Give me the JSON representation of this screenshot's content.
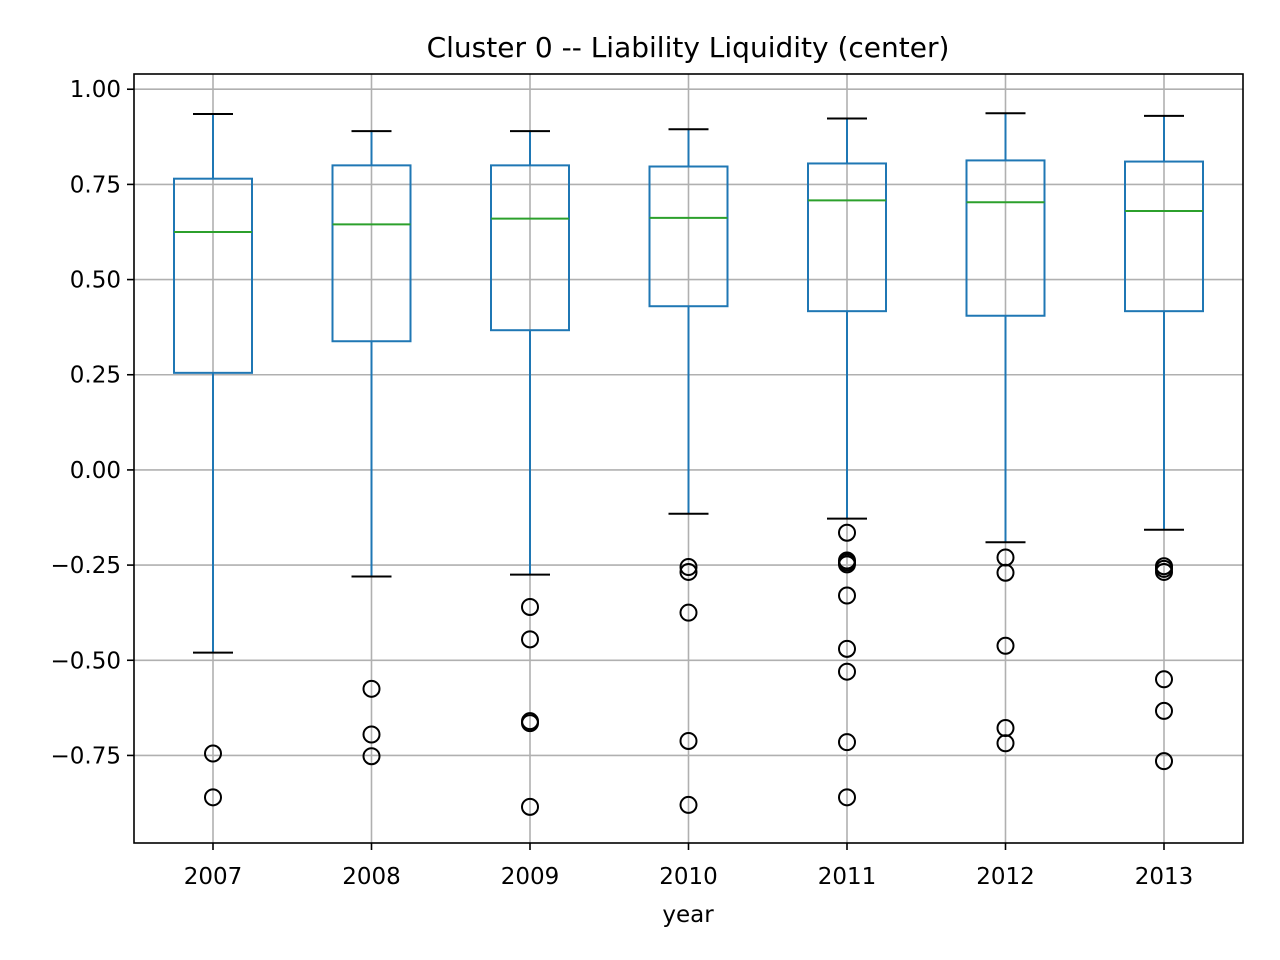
{
  "chart_data": {
    "type": "boxplot",
    "title": "Cluster 0 -- Liability Liquidity (center)",
    "xlabel": "year",
    "ylabel": "",
    "ylim": [
      -0.98,
      1.04
    ],
    "yticks": [
      1.0,
      0.75,
      0.5,
      0.25,
      0.0,
      -0.25,
      -0.5,
      -0.75
    ],
    "ytick_labels": [
      "1.00",
      "0.75",
      "0.50",
      "0.25",
      "0.00",
      "−0.25",
      "−0.50",
      "−0.75"
    ],
    "grid": true,
    "colors": {
      "box": "#1f77b4",
      "median": "#2ca02c",
      "cap": "#000000",
      "flier": "#000000",
      "grid": "#b0b0b0"
    },
    "categories": [
      "2007",
      "2008",
      "2009",
      "2010",
      "2011",
      "2012",
      "2013"
    ],
    "boxes": [
      {
        "category": "2007",
        "whisker_low": -0.48,
        "q1": 0.255,
        "median": 0.625,
        "q3": 0.765,
        "whisker_high": 0.935,
        "outliers": [
          -0.745,
          -0.86
        ]
      },
      {
        "category": "2008",
        "whisker_low": -0.28,
        "q1": 0.338,
        "median": 0.645,
        "q3": 0.8,
        "whisker_high": 0.89,
        "outliers": [
          -0.575,
          -0.695,
          -0.752
        ]
      },
      {
        "category": "2009",
        "whisker_low": -0.275,
        "q1": 0.367,
        "median": 0.66,
        "q3": 0.8,
        "whisker_high": 0.89,
        "outliers": [
          -0.36,
          -0.445,
          -0.66,
          -0.665,
          -0.885
        ]
      },
      {
        "category": "2010",
        "whisker_low": -0.115,
        "q1": 0.43,
        "median": 0.662,
        "q3": 0.797,
        "whisker_high": 0.895,
        "outliers": [
          -0.255,
          -0.268,
          -0.375,
          -0.712,
          -0.88
        ]
      },
      {
        "category": "2011",
        "whisker_low": -0.128,
        "q1": 0.417,
        "median": 0.708,
        "q3": 0.805,
        "whisker_high": 0.923,
        "outliers": [
          -0.165,
          -0.238,
          -0.243,
          -0.248,
          -0.33,
          -0.47,
          -0.53,
          -0.715,
          -0.86
        ]
      },
      {
        "category": "2012",
        "whisker_low": -0.19,
        "q1": 0.405,
        "median": 0.703,
        "q3": 0.813,
        "whisker_high": 0.937,
        "outliers": [
          -0.23,
          -0.27,
          -0.462,
          -0.678,
          -0.718
        ]
      },
      {
        "category": "2013",
        "whisker_low": -0.157,
        "q1": 0.417,
        "median": 0.68,
        "q3": 0.81,
        "whisker_high": 0.93,
        "outliers": [
          -0.253,
          -0.26,
          -0.268,
          -0.55,
          -0.633,
          -0.765
        ]
      }
    ]
  }
}
